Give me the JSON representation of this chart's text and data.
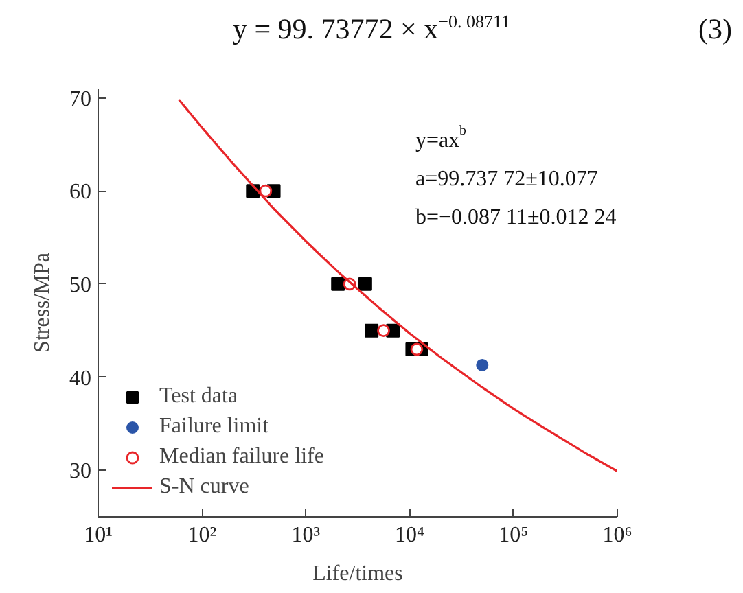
{
  "chart_data": {
    "type": "scatter",
    "title": "y = 99. 73772 × x$^{−0. 08711}$",
    "xlabel": "Life/times",
    "ylabel": "Stress/MPa",
    "log": "x",
    "xlim": [
      10,
      1000000
    ],
    "ylim": [
      25,
      71
    ],
    "xticks": [
      {
        "value": 10,
        "label": "10¹"
      },
      {
        "value": 100,
        "label": "10²"
      },
      {
        "value": 1000,
        "label": "10³"
      },
      {
        "value": 10000,
        "label": "10⁴"
      },
      {
        "value": 100000,
        "label": "10⁵"
      },
      {
        "value": 1000000,
        "label": "10⁶"
      }
    ],
    "yticks": [
      30,
      40,
      50,
      60,
      70
    ],
    "grid": false,
    "legend": "bottom left",
    "annotations": [
      "(3)",
      "y=ax$^{b}$",
      "a=99.737 72±10.077",
      "b=−0.087 11±0.012 24"
    ],
    "series": [
      {
        "name": "Test data",
        "marker": "square",
        "color": "#000000",
        "x": [
          309,
          490,
          2040,
          3730,
          4300,
          6900,
          10600,
          12900
        ],
        "values": [
          60,
          60,
          50,
          50,
          45,
          45,
          43,
          43
        ]
      },
      {
        "name": "Failure limit",
        "marker": "circle",
        "color": "#2b55a8",
        "x": [
          50000
        ],
        "values": [
          41.3
        ]
      },
      {
        "name": "Median failure life",
        "marker": "circle",
        "color": "#e8262a",
        "x": [
          410,
          2640,
          5600,
          11700
        ],
        "values": [
          60,
          50,
          45,
          43
        ]
      },
      {
        "name": "S-N curve",
        "type": "line",
        "marker": "none",
        "line_style": "solid",
        "color": "#e8262a",
        "x": [
          60,
          100,
          200,
          500,
          1000,
          2000,
          5000,
          10000,
          20000,
          50000,
          100000,
          200000,
          500000,
          1000000
        ],
        "values": [
          69.8,
          66.8,
          62.9,
          58.0,
          54.6,
          51.4,
          47.5,
          44.7,
          42.1,
          38.9,
          36.6,
          34.5,
          31.8,
          29.9
        ]
      }
    ]
  }
}
